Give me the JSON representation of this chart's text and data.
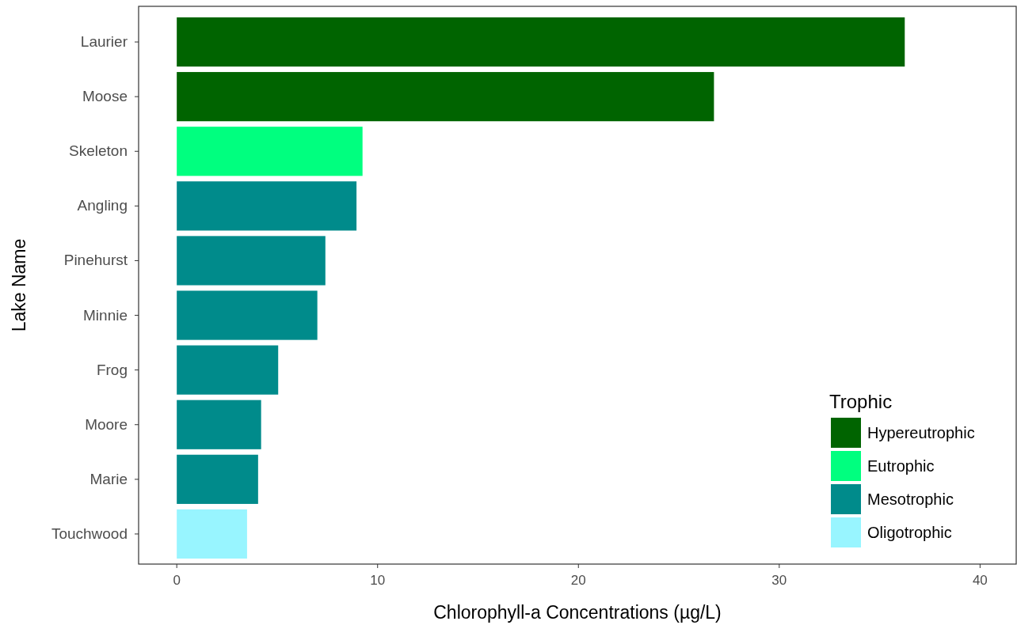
{
  "chart_data": {
    "type": "bar",
    "orientation": "horizontal",
    "xlabel": "Chlorophyll-a Concentrations (µg/L)",
    "ylabel": "Lake Name",
    "legend_title": "Trophic",
    "categories": [
      "Laurier",
      "Moose",
      "Skeleton",
      "Angling",
      "Pinehurst",
      "Minnie",
      "Frog",
      "Moore",
      "Marie",
      "Touchwood"
    ],
    "series": [
      {
        "name": "Hypereutrophic",
        "color": "#006400",
        "values": [
          36.25,
          26.75,
          null,
          null,
          null,
          null,
          null,
          null,
          null,
          null
        ]
      },
      {
        "name": "Eutrophic",
        "color": "#00ff7f",
        "values": [
          null,
          null,
          9.25,
          null,
          null,
          null,
          null,
          null,
          null,
          null
        ]
      },
      {
        "name": "Mesotrophic",
        "color": "#008b8b",
        "values": [
          null,
          null,
          null,
          8.95,
          7.4,
          7.0,
          5.05,
          4.2,
          4.05,
          null
        ]
      },
      {
        "name": "Oligotrophic",
        "color": "#98f5ff",
        "values": [
          null,
          null,
          null,
          null,
          null,
          null,
          null,
          null,
          null,
          3.5
        ]
      }
    ],
    "xlim": [
      -1.9,
      41.8
    ],
    "xticks": [
      0,
      10,
      20,
      30,
      40
    ],
    "grid": false,
    "legend": "bottom right"
  }
}
